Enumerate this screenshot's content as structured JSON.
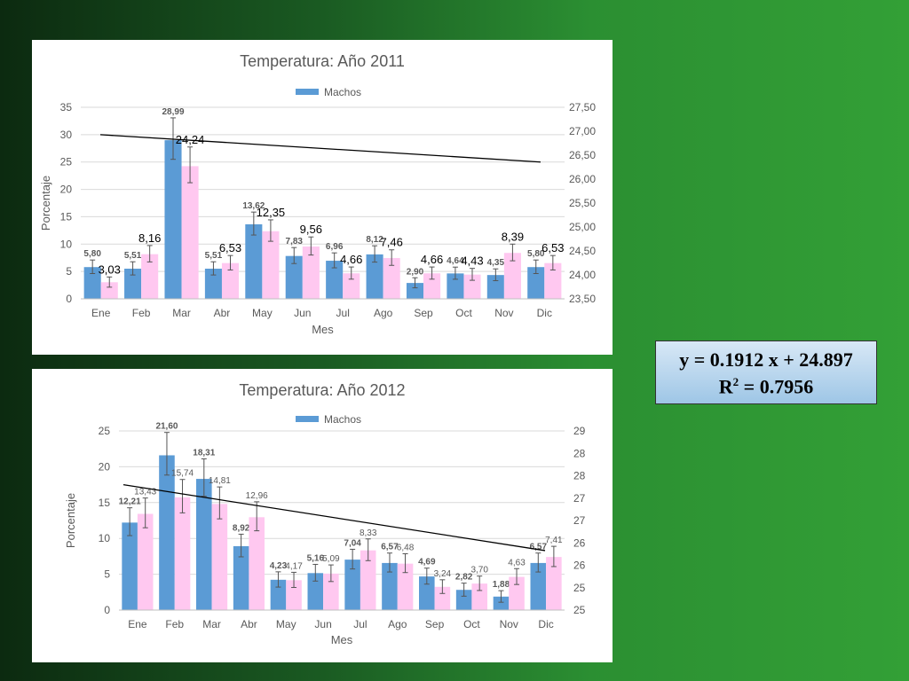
{
  "equation": {
    "line1": "y = 0.1912 x + 24.897",
    "r2_label": "R",
    "r2_sup": "2",
    "r2_value": " =  0.7956"
  },
  "colors": {
    "machos": "#5b9bd5",
    "hembras": "#ffc8f0",
    "grid": "#d9d9d9",
    "text": "#595959"
  },
  "chart_data": [
    {
      "type": "bar",
      "title": "Temperatura: Año 2011",
      "legend": "Machos",
      "xlabel": "Mes",
      "ylabel": "Porcentaje",
      "categories": [
        "Ene",
        "Feb",
        "Mar",
        "Abr",
        "May",
        "Jun",
        "Jul",
        "Ago",
        "Sep",
        "Oct",
        "Nov",
        "Dic"
      ],
      "ylim": [
        0,
        35
      ],
      "yticks": [
        "0",
        "5",
        "10",
        "15",
        "20",
        "25",
        "30",
        "35"
      ],
      "y2lim": [
        23.5,
        27.5
      ],
      "y2ticks": [
        "23,50",
        "24,00",
        "24,50",
        "25,00",
        "25,50",
        "26,00",
        "26,50",
        "27,00",
        "27,50"
      ],
      "series": [
        {
          "name": "Machos",
          "values": [
            5.8,
            5.51,
            28.99,
            5.51,
            13.62,
            7.83,
            6.96,
            8.12,
            2.9,
            4.64,
            4.35,
            5.8
          ],
          "labels": [
            "5,80",
            "5,51",
            "28,99",
            "5,51",
            "13,62",
            "7,83",
            "6,96",
            "8,12",
            "2,90",
            "4,64",
            "4,35",
            "5,80"
          ]
        },
        {
          "values": [
            3.03,
            8.16,
            24.24,
            6.53,
            12.35,
            9.56,
            4.66,
            7.46,
            4.66,
            4.43,
            8.39,
            6.53
          ],
          "labels": [
            "3,03",
            "8,16",
            "24,24",
            "6,53",
            "12,35",
            "9,56",
            "4,66",
            "7,46",
            "4,66",
            "4,43",
            "8,39",
            "6,53"
          ]
        }
      ],
      "trendline": [
        30.0,
        25.0
      ],
      "grid": true,
      "legend_position": "top"
    },
    {
      "type": "bar",
      "title": "Temperatura: Año 2012",
      "legend": "Machos",
      "xlabel": "Mes",
      "ylabel": "Porcentaje",
      "categories": [
        "Ene",
        "Feb",
        "Mar",
        "Abr",
        "May",
        "Jun",
        "Jul",
        "Ago",
        "Sep",
        "Oct",
        "Nov",
        "Dic"
      ],
      "ylim": [
        0,
        25
      ],
      "yticks": [
        "0",
        "5",
        "10",
        "15",
        "20",
        "25"
      ],
      "y2ticks": [
        "25",
        "25",
        "26",
        "26",
        "27",
        "27",
        "28",
        "28",
        "29"
      ],
      "series": [
        {
          "name": "Machos",
          "values": [
            12.21,
            21.6,
            18.31,
            8.92,
            4.23,
            5.16,
            7.04,
            6.57,
            4.69,
            2.82,
            1.88,
            6.57
          ],
          "labels": [
            "12,21",
            "21,60",
            "18,31",
            "8,92",
            "4,23",
            "5,16",
            "7,04",
            "6,57",
            "4,69",
            "2,82",
            "1,88",
            "6,57"
          ]
        },
        {
          "values": [
            13.43,
            15.74,
            14.81,
            12.96,
            4.17,
            5.09,
            8.33,
            6.48,
            3.24,
            3.7,
            4.63,
            7.41
          ],
          "labels": [
            "13,43",
            "15,74",
            "14,81",
            "12,96",
            "4,17",
            "5,09",
            "8,33",
            "6,48",
            "3,24",
            "3,70",
            "4,63",
            "7,41"
          ]
        }
      ],
      "trendline": [
        17.5,
        8.3
      ],
      "grid": true,
      "legend_position": "top"
    }
  ]
}
